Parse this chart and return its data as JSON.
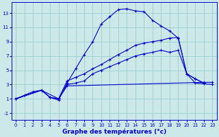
{
  "title": "Graphe des températures (°c)",
  "background_color": "#cce8e8",
  "grid_color": "#99cccc",
  "line_color": "#0000cc",
  "xlim": [
    -0.5,
    23.5
  ],
  "ylim": [
    -2,
    14.5
  ],
  "xticks": [
    0,
    1,
    2,
    3,
    4,
    5,
    6,
    7,
    8,
    9,
    10,
    11,
    12,
    13,
    14,
    15,
    16,
    17,
    18,
    19,
    20,
    21,
    22,
    23
  ],
  "yticks": [
    -1,
    1,
    3,
    5,
    7,
    9,
    11,
    13
  ],
  "line1_x": [
    0,
    1,
    2,
    3,
    4,
    5,
    6,
    7,
    8,
    9,
    10,
    11,
    12,
    13,
    14,
    15,
    16,
    17,
    18,
    19,
    20,
    21,
    22,
    23
  ],
  "line1_y": [
    1.0,
    1.5,
    2.0,
    2.2,
    1.2,
    0.8,
    3.2,
    5.2,
    7.2,
    9.0,
    11.5,
    12.5,
    13.5,
    13.6,
    13.3,
    13.2,
    12.0,
    11.2,
    10.5,
    9.5,
    4.5,
    3.2,
    3.1,
    3.0
  ],
  "line2_x": [
    0,
    3,
    4,
    5,
    6,
    7,
    8,
    9,
    10,
    11,
    12,
    13,
    14,
    15,
    16,
    17,
    18,
    19,
    20,
    21,
    22
  ],
  "line2_y": [
    1.0,
    2.2,
    1.2,
    1.0,
    3.0,
    3.2,
    3.5,
    4.5,
    5.0,
    5.5,
    6.0,
    6.5,
    7.0,
    7.3,
    7.5,
    7.8,
    7.5,
    7.8,
    4.5,
    3.8,
    3.2
  ],
  "line3_x": [
    0,
    3,
    4,
    5,
    6,
    22,
    23
  ],
  "line3_y": [
    1.0,
    2.2,
    1.2,
    1.0,
    2.8,
    3.3,
    3.3
  ],
  "line4_x": [
    0,
    3,
    5,
    6,
    7,
    8,
    9,
    10,
    11,
    12,
    13,
    14,
    15,
    16,
    17,
    18,
    19,
    20,
    21,
    22
  ],
  "line4_y": [
    1.0,
    2.2,
    1.0,
    3.5,
    4.0,
    4.5,
    5.2,
    5.8,
    6.5,
    7.2,
    7.8,
    8.5,
    8.8,
    9.0,
    9.2,
    9.5,
    9.6,
    4.5,
    3.8,
    3.2
  ]
}
